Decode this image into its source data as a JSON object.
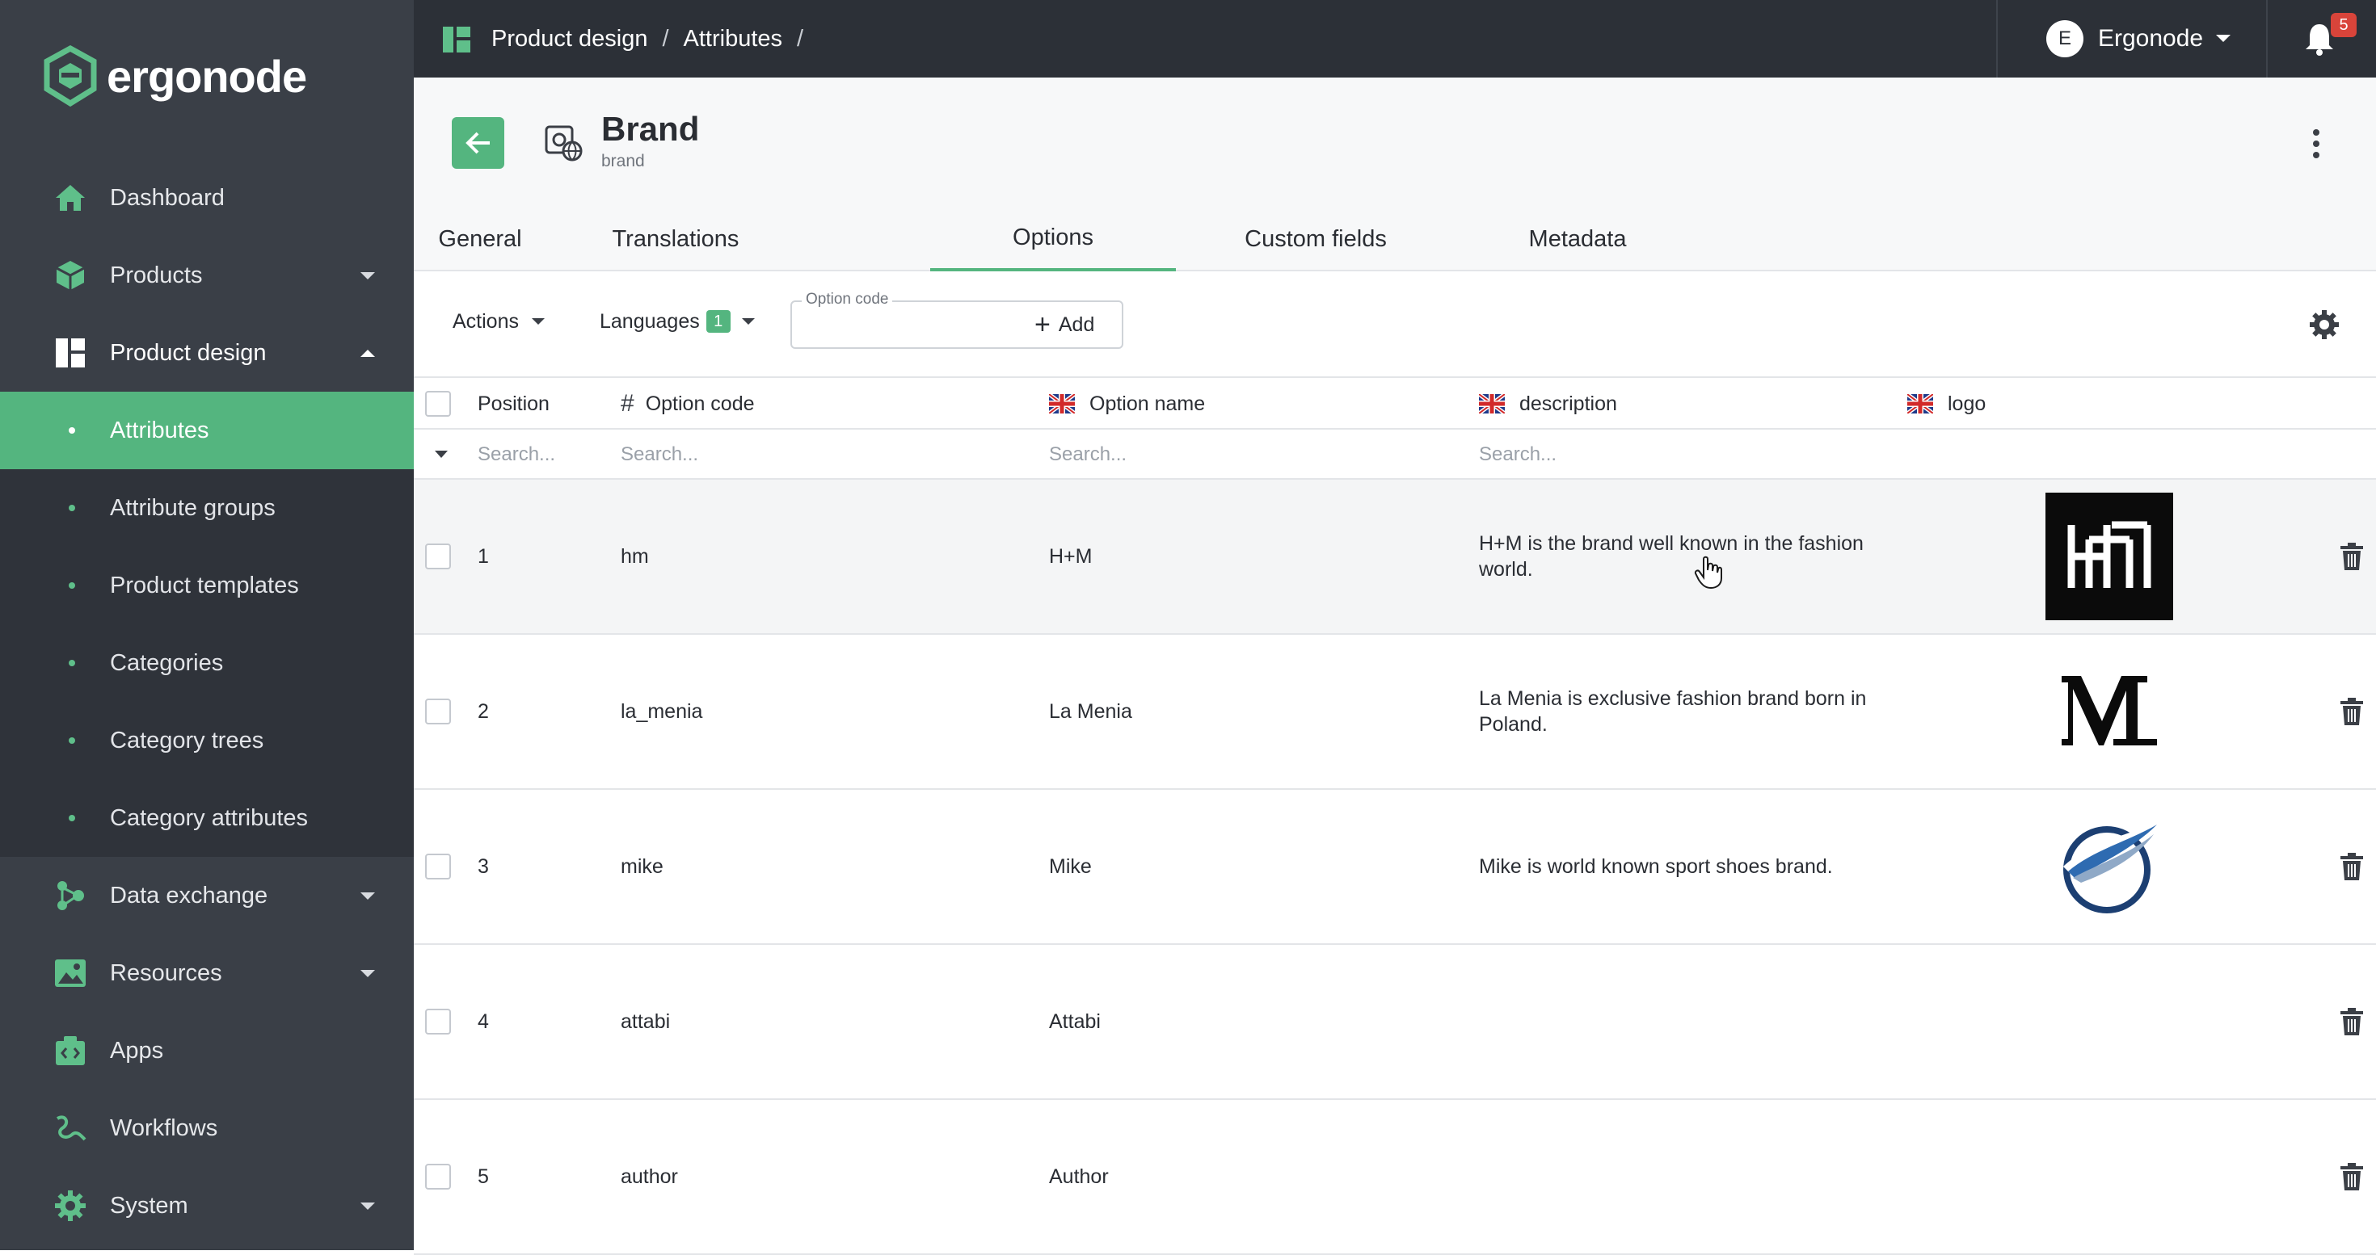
{
  "app": {
    "name": "ergonode"
  },
  "sidebar": {
    "items": [
      {
        "label": "Dashboard",
        "icon": "home-icon"
      },
      {
        "label": "Products",
        "icon": "cube-icon"
      },
      {
        "label": "Product design",
        "icon": "dashboard-layout-icon",
        "expanded": true
      },
      {
        "label": "Data exchange",
        "icon": "data-exchange-icon"
      },
      {
        "label": "Resources",
        "icon": "image-icon"
      },
      {
        "label": "Apps",
        "icon": "apps-icon"
      },
      {
        "label": "Workflows",
        "icon": "workflow-icon"
      },
      {
        "label": "System",
        "icon": "gear-icon"
      }
    ],
    "subitems": [
      {
        "label": "Attributes",
        "active": true
      },
      {
        "label": "Attribute groups"
      },
      {
        "label": "Product templates"
      },
      {
        "label": "Categories"
      },
      {
        "label": "Category trees"
      },
      {
        "label": "Category attributes"
      }
    ]
  },
  "topbar": {
    "breadcrumbs": [
      "Product design",
      "Attributes"
    ],
    "separator": "/",
    "user": {
      "initial": "E",
      "name": "Ergonode"
    },
    "notifications": "5"
  },
  "header": {
    "title": "Brand",
    "subtitle": "brand",
    "tabs": [
      {
        "label": "General"
      },
      {
        "label": "Translations"
      },
      {
        "label": "Options",
        "active": true
      },
      {
        "label": "Custom fields"
      },
      {
        "label": "Metadata"
      }
    ]
  },
  "toolbar": {
    "actions_label": "Actions",
    "languages_label": "Languages",
    "languages_count": "1",
    "option_code_label": "Option code",
    "option_code_value": "",
    "add_label": "Add"
  },
  "grid": {
    "columns": {
      "position": "Position",
      "option_code": "Option code",
      "option_name": "Option name",
      "description": "description",
      "logo": "logo"
    },
    "filter_placeholder": "Search...",
    "rows": [
      {
        "position": "1",
        "code": "hm",
        "name": "H+M",
        "description": "H+M is the brand well known in the fashion world.",
        "logo": "hm-logo"
      },
      {
        "position": "2",
        "code": "la_menia",
        "name": "La Menia",
        "description": "La Menia is exclusive fashion brand born in Poland.",
        "logo": "la-menia-logo"
      },
      {
        "position": "3",
        "code": "mike",
        "name": "Mike",
        "description": "Mike is world known sport shoes brand.",
        "logo": "mike-logo"
      },
      {
        "position": "4",
        "code": "attabi",
        "name": "Attabi",
        "description": "",
        "logo": ""
      },
      {
        "position": "5",
        "code": "author",
        "name": "Author",
        "description": "",
        "logo": ""
      }
    ]
  },
  "colors": {
    "accent": "#54b57f",
    "sidebar": "#3a3f47",
    "topbar": "#2c3037",
    "badge": "#d9443a"
  }
}
